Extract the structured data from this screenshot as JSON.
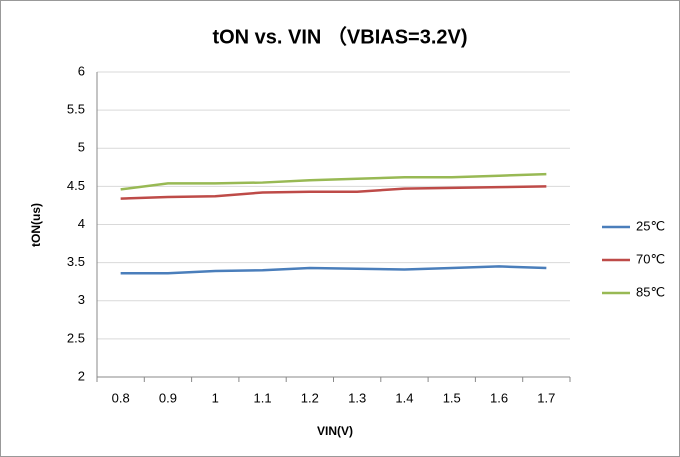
{
  "chart_data": {
    "type": "line",
    "title": "tON vs. VIN （VBIAS=3.2V)",
    "x_label": "VIN(V)",
    "y_label": "tON(us)",
    "categories": [
      "0.8",
      "0.9",
      "1",
      "1.1",
      "1.2",
      "1.3",
      "1.4",
      "1.5",
      "1.6",
      "1.7"
    ],
    "series": [
      {
        "name": "25℃",
        "color": "#4a7ebb",
        "values": [
          3.36,
          3.36,
          3.39,
          3.4,
          3.43,
          3.42,
          3.41,
          3.43,
          3.45,
          3.43
        ]
      },
      {
        "name": "70℃",
        "color": "#be4b48",
        "values": [
          4.34,
          4.36,
          4.37,
          4.42,
          4.43,
          4.43,
          4.47,
          4.48,
          4.49,
          4.5
        ]
      },
      {
        "name": "85℃",
        "color": "#98b954",
        "values": [
          4.46,
          4.54,
          4.54,
          4.55,
          4.58,
          4.6,
          4.62,
          4.62,
          4.64,
          4.66
        ]
      }
    ],
    "ylim": [
      2,
      6
    ],
    "yticks": [
      2,
      2.5,
      3,
      3.5,
      4,
      4.5,
      5,
      5.5,
      6
    ],
    "grid": true,
    "legend": "right"
  }
}
